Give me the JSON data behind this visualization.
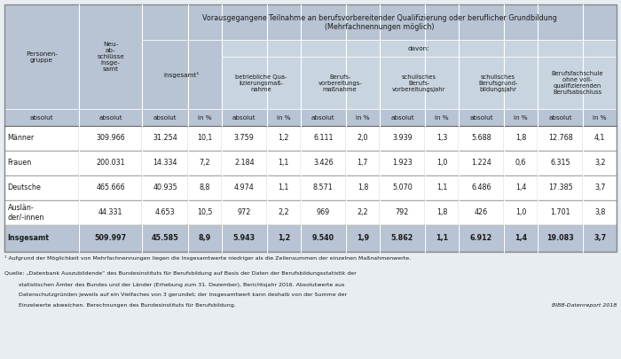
{
  "title_line1": "Vorausgegangene Teilnahme an berufsvorbereitender Qualifizierung oder beruflicher Grundbildung",
  "title_line2": "(Mehrfachnennungen möglich)",
  "davon_label": "davon:",
  "col_headers": {
    "personengruppe": "Personen-\ngruppe",
    "neuabschluesse": "Neu-\nab-\nschlüsse\ninsge-\nsamt",
    "insgesamt": "insgesamt¹",
    "betrieblich": "betriebliche Qua-\nlizierungsmaß-\nnahme",
    "berufsvorb": "Berufs-\nvorbereitungs-\nmaßnahme",
    "schulisch_berufs": "schulisches\nBerufs-\nvorbereitungsjahr",
    "schulisch_grund": "schulisches\nBerufsgrund-\nbildungsjahr",
    "berufsfach": "Berufsfachschule\nohne voll-\nqualifizierenden\nBerufsabschluss"
  },
  "subheader_absolut": "absolut",
  "subheader_in_pct": "in %",
  "rows": [
    {
      "group": "Männer",
      "neu": "309.966",
      "ins_abs": "31.254",
      "ins_pct": "10,1",
      "bet_abs": "3.759",
      "bet_pct": "1,2",
      "bv_abs": "6.111",
      "bv_pct": "2,0",
      "sb_abs": "3.939",
      "sb_pct": "1,3",
      "sg_abs": "5.688",
      "sg_pct": "1,8",
      "bf_abs": "12.768",
      "bf_pct": "4,1",
      "bold": false
    },
    {
      "group": "Frauen",
      "neu": "200.031",
      "ins_abs": "14.334",
      "ins_pct": "7,2",
      "bet_abs": "2.184",
      "bet_pct": "1,1",
      "bv_abs": "3.426",
      "bv_pct": "1,7",
      "sb_abs": "1.923",
      "sb_pct": "1,0",
      "sg_abs": "1.224",
      "sg_pct": "0,6",
      "bf_abs": "6.315",
      "bf_pct": "3,2",
      "bold": false
    },
    {
      "group": "Deutsche",
      "neu": "465.666",
      "ins_abs": "40.935",
      "ins_pct": "8,8",
      "bet_abs": "4.974",
      "bet_pct": "1,1",
      "bv_abs": "8.571",
      "bv_pct": "1,8",
      "sb_abs": "5.070",
      "sb_pct": "1,1",
      "sg_abs": "6.486",
      "sg_pct": "1,4",
      "bf_abs": "17.385",
      "bf_pct": "3,7",
      "bold": false
    },
    {
      "group": "Auslän-\nder/-innen",
      "neu": "44.331",
      "ins_abs": "4.653",
      "ins_pct": "10,5",
      "bet_abs": "972",
      "bet_pct": "2,2",
      "bv_abs": "969",
      "bv_pct": "2,2",
      "sb_abs": "792",
      "sb_pct": "1,8",
      "sg_abs": "426",
      "sg_pct": "1,0",
      "bf_abs": "1.701",
      "bf_pct": "3,8",
      "bold": false
    },
    {
      "group": "Insgesamt",
      "neu": "509.997",
      "ins_abs": "45.585",
      "ins_pct": "8,9",
      "bet_abs": "5.943",
      "bet_pct": "1,2",
      "bv_abs": "9.540",
      "bv_pct": "1,9",
      "sb_abs": "5.862",
      "sb_pct": "1,1",
      "sg_abs": "6.912",
      "sg_pct": "1,4",
      "bf_abs": "19.083",
      "bf_pct": "3,7",
      "bold": true
    }
  ],
  "footnote1": "¹ Aufgrund der Möglichkeit von Mehrfachnennungen liegen die Insgesamtwerte niedriger als die Zeilensummen der einzelnen Maßnahmenwerte.",
  "footnote2": "Quelle: „Datenbank Auszubildende“ des Bundesinstituts für Berufsbildung auf Basis der Daten der Berufsbildungsstatistik der",
  "footnote3": "        statistischen Ämter des Bundes und der Länder (Erhebung zum 31. Dezember), Berichtsjahr 2016. Absolutwerte aus",
  "footnote4": "        Datenschutzgründen jeweils auf ein Vielfaches von 3 gerundet; der Insgesamtwert kann deshalb von der Summe der",
  "footnote5": "        Einzelwerte abweichen. Berechnungen des Bundesinstituts für Berufsbildung.",
  "bibb_label": "BIBB-Datenreport 2018",
  "bg_color_header": "#b8c4d4",
  "bg_color_davon": "#c8d4e0",
  "bg_color_white": "#ffffff",
  "bg_color_total": "#b8c4d4",
  "bg_color_outer": "#d8e0e8",
  "border_color": "#ffffff",
  "text_color": "#1a1a2e",
  "outer_bg": "#e8edf2"
}
